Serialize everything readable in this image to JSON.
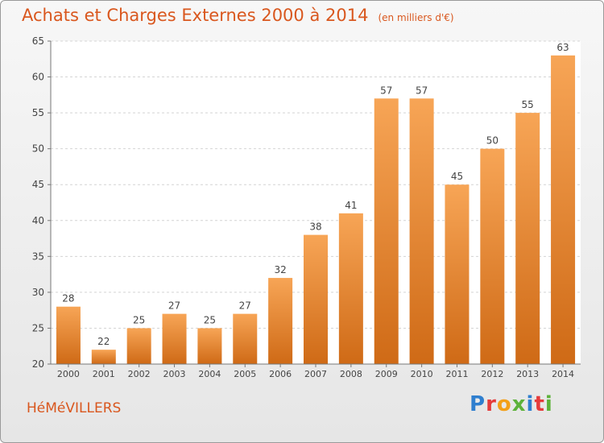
{
  "chart_data": {
    "type": "bar",
    "title": "Achats et Charges Externes 2000 à 2014",
    "subtitle": "(en milliers d'€)",
    "categories": [
      "2000",
      "2001",
      "2002",
      "2003",
      "2004",
      "2005",
      "2006",
      "2007",
      "2008",
      "2009",
      "2010",
      "2011",
      "2012",
      "2013",
      "2014"
    ],
    "values": [
      28,
      22,
      25,
      27,
      25,
      27,
      32,
      38,
      41,
      57,
      57,
      45,
      50,
      55,
      63
    ],
    "ylim": [
      20,
      65
    ],
    "yticks": [
      20,
      25,
      30,
      35,
      40,
      45,
      50,
      55,
      60,
      65
    ],
    "grid": true,
    "bar_color": "#e8822a",
    "bar_color_light": "#f7a556",
    "bar_color_dark": "#cf6a16"
  },
  "footer": {
    "city": "HéMéVILLERS",
    "logo": "Proxiti"
  },
  "logo_colors": [
    "#2f7fcf",
    "#e53b3b",
    "#f3a019",
    "#5db23a",
    "#2f7fcf",
    "#e53b3b",
    "#5db23a"
  ],
  "colors": {
    "accent": "#d9571e"
  }
}
